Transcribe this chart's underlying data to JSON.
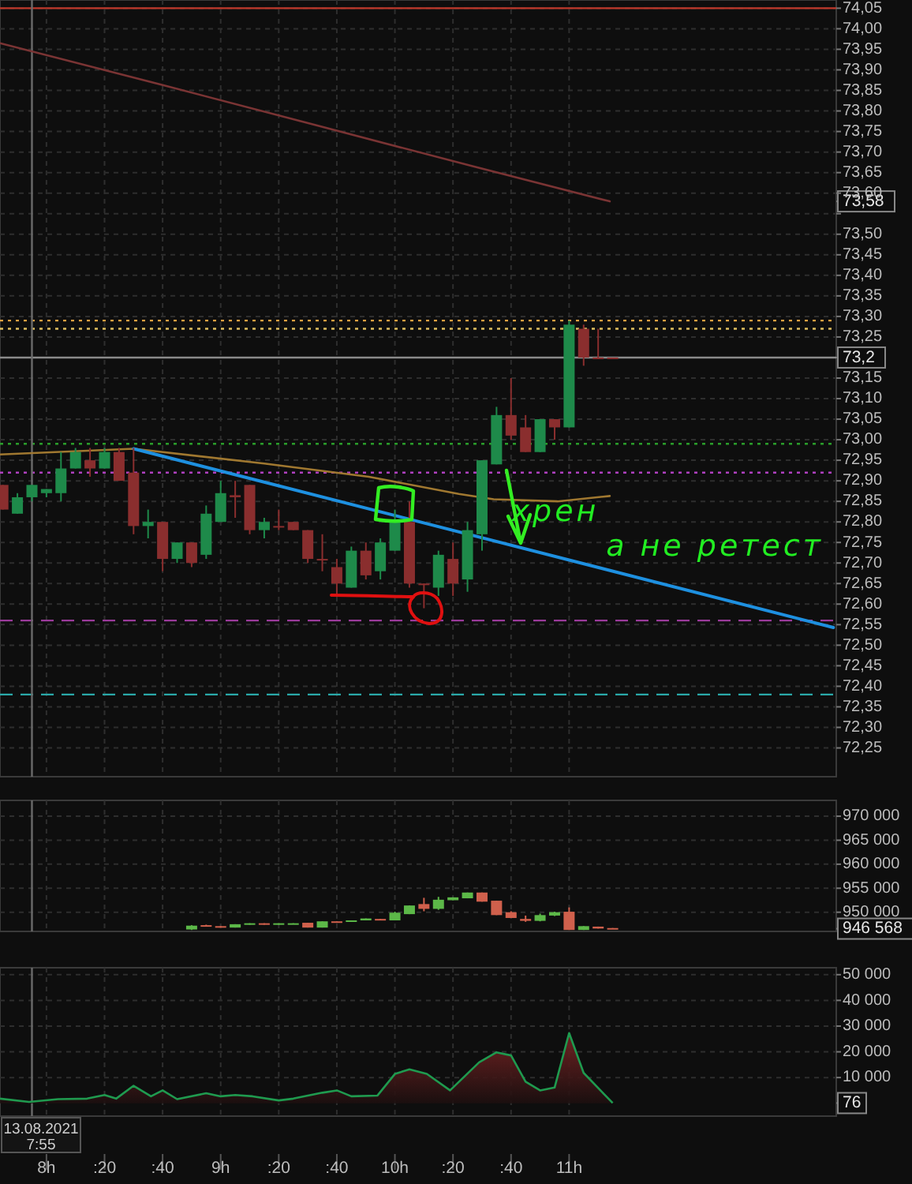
{
  "chart_data": [
    {
      "type": "candlestick",
      "xlim": [
        "2021-08-13T07:44",
        "2021-08-13T12:32"
      ],
      "ylim": [
        72.18,
        74.07
      ],
      "grid": true,
      "tick_labels": "y",
      "x": [
        "2021-08-13T07:45",
        "2021-08-13T07:50",
        "2021-08-13T07:55",
        "2021-08-13T08:00",
        "2021-08-13T08:05",
        "2021-08-13T08:10",
        "2021-08-13T08:15",
        "2021-08-13T08:20",
        "2021-08-13T08:25",
        "2021-08-13T08:30",
        "2021-08-13T08:35",
        "2021-08-13T08:40",
        "2021-08-13T08:45",
        "2021-08-13T08:50",
        "2021-08-13T08:55",
        "2021-08-13T09:00",
        "2021-08-13T09:05",
        "2021-08-13T09:10",
        "2021-08-13T09:15",
        "2021-08-13T09:20",
        "2021-08-13T09:25",
        "2021-08-13T09:30",
        "2021-08-13T09:35",
        "2021-08-13T09:40",
        "2021-08-13T09:45",
        "2021-08-13T09:50",
        "2021-08-13T09:55",
        "2021-08-13T10:00",
        "2021-08-13T10:05",
        "2021-08-13T10:10",
        "2021-08-13T10:15",
        "2021-08-13T10:20",
        "2021-08-13T10:25",
        "2021-08-13T10:30",
        "2021-08-13T10:35",
        "2021-08-13T10:40",
        "2021-08-13T10:45",
        "2021-08-13T10:50",
        "2021-08-13T10:55",
        "2021-08-13T11:00",
        "2021-08-13T11:05",
        "2021-08-13T11:10",
        "2021-08-13T11:15"
      ],
      "ohlc": [
        [
          72.89,
          72.89,
          72.83,
          72.83
        ],
        [
          72.82,
          72.87,
          72.82,
          72.86
        ],
        [
          72.86,
          72.89,
          72.85,
          72.89
        ],
        [
          72.87,
          72.88,
          72.86,
          72.88
        ],
        [
          72.87,
          72.97,
          72.85,
          72.93
        ],
        [
          72.93,
          72.98,
          72.93,
          72.97
        ],
        [
          72.95,
          72.98,
          72.91,
          72.93
        ],
        [
          72.93,
          72.98,
          72.93,
          72.97
        ],
        [
          72.97,
          72.98,
          72.9,
          72.9
        ],
        [
          72.92,
          72.98,
          72.77,
          72.79
        ],
        [
          72.79,
          72.83,
          72.76,
          72.8
        ],
        [
          72.8,
          72.8,
          72.68,
          72.71
        ],
        [
          72.71,
          72.75,
          72.7,
          72.75
        ],
        [
          72.75,
          72.75,
          72.69,
          72.7
        ],
        [
          72.72,
          72.84,
          72.71,
          72.82
        ],
        [
          72.8,
          72.9,
          72.8,
          72.87
        ],
        [
          72.865,
          72.9,
          72.81,
          72.86
        ],
        [
          72.89,
          72.89,
          72.77,
          72.78
        ],
        [
          72.78,
          72.81,
          72.76,
          72.8
        ],
        [
          72.79,
          72.83,
          72.78,
          72.79
        ],
        [
          72.8,
          72.8,
          72.78,
          72.78
        ],
        [
          72.78,
          72.78,
          72.7,
          72.71
        ],
        [
          72.71,
          72.77,
          72.68,
          72.71
        ],
        [
          72.69,
          72.71,
          72.62,
          72.65
        ],
        [
          72.64,
          72.74,
          72.64,
          72.73
        ],
        [
          72.73,
          72.75,
          72.66,
          72.67
        ],
        [
          72.68,
          72.76,
          72.66,
          72.75
        ],
        [
          72.73,
          72.83,
          72.73,
          72.8
        ],
        [
          72.8,
          72.85,
          72.64,
          72.65
        ],
        [
          72.65,
          72.65,
          72.59,
          72.65
        ],
        [
          72.64,
          72.73,
          72.62,
          72.72
        ],
        [
          72.71,
          72.75,
          72.62,
          72.65
        ],
        [
          72.66,
          72.8,
          72.63,
          72.78
        ],
        [
          72.77,
          72.95,
          72.73,
          72.95
        ],
        [
          72.94,
          73.08,
          72.94,
          73.06
        ],
        [
          73.06,
          73.15,
          73,
          73.01
        ],
        [
          73.03,
          73.06,
          72.97,
          72.97
        ],
        [
          72.97,
          73.05,
          72.97,
          73.05
        ],
        [
          73.05,
          73.05,
          73,
          73.03
        ],
        [
          73.03,
          73.29,
          73.03,
          73.28
        ],
        [
          73.27,
          73.28,
          73.18,
          73.2
        ],
        [
          73.2,
          73.27,
          73.2,
          73.2
        ],
        [
          73.2,
          73.2,
          73.2,
          73.2
        ]
      ],
      "colors": [
        "#8a2e2e",
        "#1e8a4a",
        "#1e8a4a",
        "#1e8a4a",
        "#1e8a4a",
        "#1e8a4a",
        "#8a2e2e",
        "#1e8a4a",
        "#8a2e2e",
        "#8a2e2e",
        "#1e8a4a",
        "#8a2e2e",
        "#1e8a4a",
        "#8a2e2e",
        "#1e8a4a",
        "#1e8a4a",
        "#8a2e2e",
        "#8a2e2e",
        "#1e8a4a",
        "#8a2e2e",
        "#8a2e2e",
        "#8a2e2e",
        "#8a2e2e",
        "#8a2e2e",
        "#1e8a4a",
        "#8a2e2e",
        "#1e8a4a",
        "#1e8a4a",
        "#8a2e2e",
        "#8a2e2e",
        "#1e8a4a",
        "#8a2e2e",
        "#1e8a4a",
        "#1e8a4a",
        "#1e8a4a",
        "#8a2e2e",
        "#8a2e2e",
        "#1e8a4a",
        "#8a2e2e",
        "#1e8a4a",
        "#8a2e2e",
        "#8a2e2e",
        "#8a2e2e"
      ],
      "series": [
        {
          "type": "line",
          "color": "#7a3434",
          "x": [
            "2021-08-13T07:44",
            "2021-08-13T08:39",
            "2021-08-13T09:33",
            "2021-08-13T10:27",
            "2021-08-13T11:14"
          ],
          "values": [
            73.965,
            73.865,
            73.765,
            73.665,
            73.58
          ]
        },
        {
          "type": "line",
          "color": "#a07830",
          "x": [
            "2021-08-13T07:44",
            "2021-08-13T08:30",
            "2021-08-13T09:15",
            "2021-08-13T09:51",
            "2021-08-13T10:22",
            "2021-08-13T10:34",
            "2021-08-13T10:56",
            "2021-08-13T11:14"
          ],
          "values": [
            72.964,
            72.978,
            72.942,
            72.91,
            72.868,
            72.855,
            72.85,
            72.863
          ]
        },
        {
          "type": "line",
          "color": "#1e90e0",
          "x": [
            "2021-08-13T08:30",
            "2021-08-13T12:31"
          ],
          "values": [
            72.978,
            72.543
          ]
        }
      ],
      "ref_lines": [
        {
          "axis": "y",
          "value": 74.05,
          "color": "#c0392b",
          "line_style": "solid"
        },
        {
          "axis": "y",
          "value": 73.29,
          "color": "#e0a040",
          "line_style": "dotted"
        },
        {
          "axis": "y",
          "value": 73.27,
          "color": "#e0c060",
          "line_style": "dotted"
        },
        {
          "axis": "y",
          "value": 73.2,
          "color": "#8a8a8a",
          "line_style": "solid"
        },
        {
          "axis": "y",
          "value": 72.99,
          "color": "#2a9d2a",
          "line_style": "dotted"
        },
        {
          "axis": "y",
          "value": 72.92,
          "color": "#b040c0",
          "line_style": "dotted"
        },
        {
          "axis": "y",
          "value": 72.56,
          "color": "#9a3a9a",
          "line_style": "dashed"
        },
        {
          "axis": "y",
          "value": 72.38,
          "color": "#2aa8a8",
          "line_style": "dashed"
        },
        {
          "axis": "x",
          "value": "2021-08-13T07:55",
          "color": "#6a6a6a",
          "line_style": "solid"
        }
      ],
      "annotations": [
        "хрен",
        "а не ретест"
      ],
      "xticks": [
        "2021-08-13T08:00",
        "2021-08-13T08:20",
        "2021-08-13T08:40",
        "2021-08-13T09:00",
        "2021-08-13T09:20",
        "2021-08-13T09:40",
        "2021-08-13T10:00",
        "2021-08-13T10:20",
        "2021-08-13T10:40",
        "2021-08-13T11:00"
      ],
      "yticks": [
        {
          "value": 72.25,
          "label": "72,25"
        },
        {
          "value": 72.3,
          "label": "72,30"
        },
        {
          "value": 72.35,
          "label": "72,35"
        },
        {
          "value": 72.4,
          "label": "72,40"
        },
        {
          "value": 72.45,
          "label": "72,45"
        },
        {
          "value": 72.5,
          "label": "72,50"
        },
        {
          "value": 72.55,
          "label": "72,55"
        },
        {
          "value": 72.6,
          "label": "72,60"
        },
        {
          "value": 72.65,
          "label": "72,65"
        },
        {
          "value": 72.7,
          "label": "72,70"
        },
        {
          "value": 72.75,
          "label": "72,75"
        },
        {
          "value": 72.8,
          "label": "72,80"
        },
        {
          "value": 72.85,
          "label": "72,85"
        },
        {
          "value": 72.9,
          "label": "72,90"
        },
        {
          "value": 72.95,
          "label": "72,95"
        },
        {
          "value": 73,
          "label": "73,00"
        },
        {
          "value": 73.05,
          "label": "73,05"
        },
        {
          "value": 73.1,
          "label": "73,10"
        },
        {
          "value": 73.15,
          "label": "73,15"
        },
        {
          "value": 73.2,
          "label": "73,2"
        },
        {
          "value": 73.25,
          "label": "73,25"
        },
        {
          "value": 73.3,
          "label": "73,30"
        },
        {
          "value": 73.35,
          "label": "73,35"
        },
        {
          "value": 73.4,
          "label": "73,40"
        },
        {
          "value": 73.45,
          "label": "73,45"
        },
        {
          "value": 73.5,
          "label": "73,50"
        },
        {
          "value": 73.55,
          "label": null
        },
        {
          "value": 73.58,
          "label": "73,58"
        },
        {
          "value": 73.6,
          "label": "73,60"
        },
        {
          "value": 73.65,
          "label": "73,65"
        },
        {
          "value": 73.7,
          "label": "73,70"
        },
        {
          "value": 73.75,
          "label": "73,75"
        },
        {
          "value": 73.8,
          "label": "73,80"
        },
        {
          "value": 73.85,
          "label": "73,85"
        },
        {
          "value": 73.9,
          "label": "73,90"
        },
        {
          "value": 73.95,
          "label": "73,95"
        },
        {
          "value": 74,
          "label": "74,00"
        },
        {
          "value": 74.05,
          "label": "74,05"
        }
      ]
    },
    {
      "type": "candlestick",
      "xlim": [
        "2021-08-13T07:44",
        "2021-08-13T12:32"
      ],
      "ylim": [
        946000,
        973300
      ],
      "grid": true,
      "tick_labels": "y",
      "x": [
        "2021-08-13T08:50",
        "2021-08-13T08:55",
        "2021-08-13T09:00",
        "2021-08-13T09:05",
        "2021-08-13T09:10",
        "2021-08-13T09:15",
        "2021-08-13T09:20",
        "2021-08-13T09:25",
        "2021-08-13T09:30",
        "2021-08-13T09:35",
        "2021-08-13T09:40",
        "2021-08-13T09:45",
        "2021-08-13T09:50",
        "2021-08-13T09:55",
        "2021-08-13T10:00",
        "2021-08-13T10:05",
        "2021-08-13T10:10",
        "2021-08-13T10:15",
        "2021-08-13T10:20",
        "2021-08-13T10:25",
        "2021-08-13T10:30",
        "2021-08-13T10:35",
        "2021-08-13T10:40",
        "2021-08-13T10:45",
        "2021-08-13T10:50",
        "2021-08-13T10:55",
        "2021-08-13T11:00",
        "2021-08-13T11:05",
        "2021-08-13T11:10",
        "2021-08-13T11:15"
      ],
      "ohlc": [
        [
          946400,
          947300,
          946300,
          947200
        ],
        [
          947300,
          947400,
          947100,
          947100
        ],
        [
          947100,
          947100,
          946800,
          946900
        ],
        [
          946800,
          947500,
          946800,
          947500
        ],
        [
          947400,
          947700,
          947400,
          947700
        ],
        [
          947700,
          947700,
          947400,
          947400
        ],
        [
          947400,
          947700,
          947400,
          947700
        ],
        [
          947600,
          947700,
          947600,
          947700
        ],
        [
          947800,
          947800,
          946800,
          946800
        ],
        [
          946800,
          948100,
          946800,
          948100
        ],
        [
          948100,
          948100,
          948000,
          948000
        ],
        [
          948000,
          948300,
          948000,
          948300
        ],
        [
          948300,
          948700,
          948300,
          948700
        ],
        [
          948600,
          948600,
          948400,
          948400
        ],
        [
          948300,
          950100,
          948300,
          949900
        ],
        [
          949600,
          951400,
          949600,
          951400
        ],
        [
          951700,
          953000,
          950200,
          950700
        ],
        [
          950700,
          953200,
          950500,
          952600
        ],
        [
          952500,
          953100,
          952500,
          953100
        ],
        [
          952900,
          954100,
          952900,
          954100
        ],
        [
          954100,
          954100,
          952200,
          952200
        ],
        [
          952400,
          952400,
          949400,
          949400
        ],
        [
          950000,
          950200,
          948800,
          948800
        ],
        [
          948600,
          949300,
          948000,
          948200
        ],
        [
          948200,
          949700,
          948100,
          949400
        ],
        [
          949300,
          950100,
          949200,
          950000
        ],
        [
          950100,
          951000,
          946300,
          946300
        ],
        [
          946300,
          947100,
          946300,
          947100
        ],
        [
          947000,
          947000,
          946600,
          946600
        ],
        [
          946700,
          946700,
          946568,
          946568
        ]
      ],
      "colors": [
        "#5cb848",
        "#d0604c",
        "#d0604c",
        "#5cb848",
        "#5cb848",
        "#d0604c",
        "#5cb848",
        "#5cb848",
        "#d0604c",
        "#5cb848",
        "#d0604c",
        "#5cb848",
        "#5cb848",
        "#d0604c",
        "#5cb848",
        "#5cb848",
        "#d0604c",
        "#5cb848",
        "#5cb848",
        "#5cb848",
        "#d0604c",
        "#d0604c",
        "#d0604c",
        "#d0604c",
        "#5cb848",
        "#5cb848",
        "#d0604c",
        "#5cb848",
        "#d0604c",
        "#d0604c"
      ],
      "ref_lines": [
        {
          "axis": "x",
          "value": "2021-08-13T07:55",
          "color": "#6a6a6a",
          "line_style": "solid"
        }
      ],
      "xticks": [
        "2021-08-13T08:00",
        "2021-08-13T08:20",
        "2021-08-13T08:40",
        "2021-08-13T09:00",
        "2021-08-13T09:20",
        "2021-08-13T09:40",
        "2021-08-13T10:00",
        "2021-08-13T10:20",
        "2021-08-13T10:40",
        "2021-08-13T11:00"
      ],
      "yticks": [
        {
          "value": 946568,
          "label": "946 568"
        },
        {
          "value": 950000,
          "label": "950 000"
        },
        {
          "value": 955000,
          "label": "955 000"
        },
        {
          "value": 960000,
          "label": "960 000"
        },
        {
          "value": 965000,
          "label": "965 000"
        },
        {
          "value": 970000,
          "label": "970 000"
        }
      ]
    },
    {
      "type": "area",
      "xlim": [
        "2021-08-13T07:44",
        "2021-08-13T12:32"
      ],
      "ylim": [
        -5000,
        52700
      ],
      "grid": true,
      "x": [
        "2021-08-13T07:44",
        "2021-08-13T07:54",
        "2021-08-13T08:04",
        "2021-08-13T08:14",
        "2021-08-13T08:20",
        "2021-08-13T08:24",
        "2021-08-13T08:30",
        "2021-08-13T08:36",
        "2021-08-13T08:40",
        "2021-08-13T08:45",
        "2021-08-13T08:55",
        "2021-08-13T09:00",
        "2021-08-13T09:05",
        "2021-08-13T09:11",
        "2021-08-13T09:20",
        "2021-08-13T09:25",
        "2021-08-13T09:35",
        "2021-08-13T09:40",
        "2021-08-13T09:45",
        "2021-08-13T09:54",
        "2021-08-13T10:00",
        "2021-08-13T10:05",
        "2021-08-13T10:11",
        "2021-08-13T10:19",
        "2021-08-13T10:29",
        "2021-08-13T10:35",
        "2021-08-13T10:40",
        "2021-08-13T10:45",
        "2021-08-13T10:50",
        "2021-08-13T10:55",
        "2021-08-13T11:00",
        "2021-08-13T11:05",
        "2021-08-13T11:15"
      ],
      "series": [
        {
          "color": "#1f9a4f",
          "values": [
            1800,
            500,
            1600,
            1800,
            3200,
            1800,
            6800,
            2700,
            5000,
            1600,
            3900,
            2700,
            3200,
            2700,
            1100,
            1800,
            4100,
            5000,
            2700,
            3000,
            11400,
            13200,
            11400,
            5000,
            15900,
            19800,
            18600,
            8400,
            5000,
            6100,
            27300,
            11800,
            76
          ]
        }
      ],
      "ref_lines": [
        {
          "axis": "x",
          "value": "2021-08-13T07:55",
          "color": "#6a6a6a",
          "line_style": "solid",
          "label": "13.08.2021 7:55"
        }
      ],
      "xticks": [
        {
          "value": "2021-08-13T08:00",
          "label": "8h"
        },
        {
          "value": "2021-08-13T08:20",
          "label": ":20"
        },
        {
          "value": "2021-08-13T08:40",
          "label": ":40"
        },
        {
          "value": "2021-08-13T09:00",
          "label": "9h"
        },
        {
          "value": "2021-08-13T09:20",
          "label": ":20"
        },
        {
          "value": "2021-08-13T09:40",
          "label": ":40"
        },
        {
          "value": "2021-08-13T10:00",
          "label": "10h"
        },
        {
          "value": "2021-08-13T10:20",
          "label": ":20"
        },
        {
          "value": "2021-08-13T10:40",
          "label": ":40"
        },
        {
          "value": "2021-08-13T11:00",
          "label": "11h"
        }
      ],
      "yticks": [
        {
          "value": 76,
          "label": "76"
        },
        {
          "value": 10000,
          "label": "10 000"
        },
        {
          "value": 20000,
          "label": "20 000"
        },
        {
          "value": 30000,
          "label": "30 000"
        },
        {
          "value": 40000,
          "label": "40 000"
        },
        {
          "value": 50000,
          "label": "50 000"
        }
      ]
    }
  ]
}
